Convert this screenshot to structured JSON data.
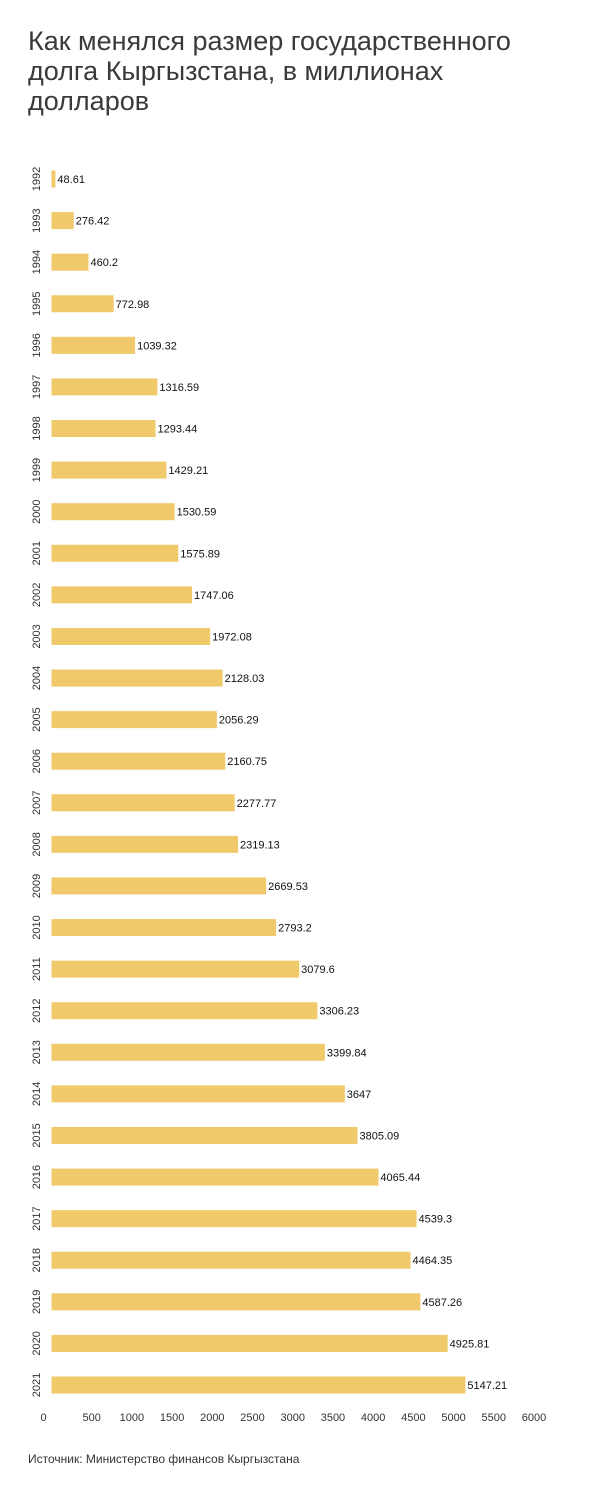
{
  "chart_data": {
    "type": "bar",
    "orientation": "horizontal",
    "title": "Как менялся размер государственного долга Кыргызстана, в миллионах долларов",
    "categories": [
      "1992",
      "1993",
      "1994",
      "1995",
      "1996",
      "1997",
      "1998",
      "1999",
      "2000",
      "2001",
      "2002",
      "2003",
      "2004",
      "2005",
      "2006",
      "2007",
      "2008",
      "2009",
      "2010",
      "2011",
      "2012",
      "2013",
      "2014",
      "2015",
      "2016",
      "2017",
      "2018",
      "2019",
      "2020",
      "2021"
    ],
    "values": [
      48.61,
      276.42,
      460.2,
      772.98,
      1039.32,
      1316.59,
      1293.44,
      1429.21,
      1530.59,
      1575.89,
      1747.06,
      1972.08,
      2128.03,
      2056.29,
      2160.75,
      2277.77,
      2319.13,
      2669.53,
      2793.2,
      3079.6,
      3306.23,
      3399.84,
      3647,
      3805.09,
      4065.44,
      4539.3,
      4464.35,
      4587.26,
      4925.81,
      5147.21
    ],
    "value_labels": [
      "48.61",
      "276.42",
      "460.2",
      "772.98",
      "1039.32",
      "1316.59",
      "1293.44",
      "1429.21",
      "1530.59",
      "1575.89",
      "1747.06",
      "1972.08",
      "2128.03",
      "2056.29",
      "2160.75",
      "2277.77",
      "2319.13",
      "2669.53",
      "2793.2",
      "3079.6",
      "3306.23",
      "3399.84",
      "3647",
      "3805.09",
      "4065.44",
      "4539.3",
      "4464.35",
      "4587.26",
      "4925.81",
      "5147.21"
    ],
    "xticks": [
      "0",
      "500",
      "1000",
      "1500",
      "2000",
      "2500",
      "3000",
      "3500",
      "4000",
      "4500",
      "5000",
      "5500",
      "6000"
    ],
    "xlim": [
      0,
      6000
    ],
    "grid": false,
    "legend": "none",
    "bar_color": "#f0c96a"
  },
  "footer": {
    "source": "Источник: Министерство финансов Кыргызстана"
  }
}
